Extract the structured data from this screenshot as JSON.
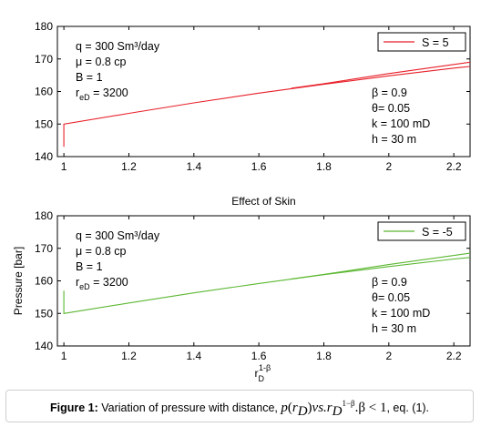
{
  "caption": {
    "label": "Figure 1:",
    "text": "Variation of pressure with distance,",
    "math_p": "p",
    "math_arg": "r",
    "math_arg_sub": "D",
    "math_vs": "vs.r",
    "math_vs_sub": "D",
    "math_exp": "1−β",
    "math_cond": ".β < 1",
    "suffix": ", eq. (1)."
  },
  "chart_data": [
    {
      "type": "line",
      "title": "",
      "xlabel": "",
      "ylabel": "",
      "xlim": [
        0.98,
        2.25
      ],
      "ylim": [
        140,
        180
      ],
      "xticks": [
        "1",
        "1.2",
        "1.4",
        "1.6",
        "1.8",
        "2",
        "2.2"
      ],
      "yticks": [
        "140",
        "150",
        "160",
        "170",
        "180"
      ],
      "grid": false,
      "legend": "top-right",
      "series": [
        {
          "name": "S = 5",
          "color": "#e8202a",
          "x": [
            1.0,
            1.0,
            1.2,
            1.4,
            1.6,
            1.8,
            2.0,
            2.2,
            2.25
          ],
          "y": [
            143.0,
            150.0,
            153.3,
            156.5,
            159.5,
            162.2,
            164.8,
            167.2,
            167.7
          ]
        },
        {
          "name": "",
          "color": "#e8202a",
          "x": [
            1.7,
            1.8,
            2.0,
            2.2,
            2.25
          ],
          "y": [
            161.0,
            162.4,
            165.5,
            168.3,
            169.0
          ]
        }
      ],
      "annotations": {
        "params_left": [
          "q = 300 Sm³/day",
          "μ = 0.8 cp",
          "B = 1",
          "r_eD = 3200"
        ],
        "params_right": [
          "β = 0.9",
          "θ= 0.05",
          "k = 100 mD",
          "h = 30 m"
        ]
      }
    },
    {
      "type": "line",
      "title": "Effect of Skin",
      "xlabel": "r_D^(1-β)",
      "ylabel": "Pressure  [bar]",
      "xlim": [
        0.98,
        2.25
      ],
      "ylim": [
        140,
        180
      ],
      "xticks": [
        "1",
        "1.2",
        "1.4",
        "1.6",
        "1.8",
        "2",
        "2.2"
      ],
      "yticks": [
        "140",
        "150",
        "160",
        "170",
        "180"
      ],
      "grid": false,
      "legend": "top-right",
      "series": [
        {
          "name": "S = -5",
          "color": "#5cb833",
          "x": [
            1.0,
            1.0,
            1.2,
            1.4,
            1.6,
            1.8,
            2.0,
            2.2,
            2.25
          ],
          "y": [
            157.0,
            150.0,
            153.2,
            156.3,
            159.2,
            161.9,
            164.4,
            166.7,
            167.2
          ]
        },
        {
          "name": "",
          "color": "#5cb833",
          "x": [
            1.7,
            1.8,
            2.0,
            2.2,
            2.25
          ],
          "y": [
            160.6,
            162.0,
            165.0,
            167.8,
            168.5
          ]
        }
      ],
      "annotations": {
        "params_left": [
          "q = 300 Sm³/day",
          "μ = 0.8 cp",
          "B = 1",
          "r_eD = 3200"
        ],
        "params_right": [
          "β = 0.9",
          "θ= 0.05",
          "k = 100 mD",
          "h = 30 m"
        ]
      }
    }
  ],
  "text": {
    "params_left": [
      "q = 300 Sm³/day",
      "μ = 0.8 cp",
      "B = 1"
    ],
    "reD_main": "r",
    "reD_sub": "eD",
    "reD_value": " = 3200",
    "params_right": [
      "β = 0.9",
      "θ= 0.05",
      "k = 100 mD",
      "h = 30 m"
    ],
    "title2": "Effect of Skin",
    "ylabel2": "Pressure  [bar]",
    "xlabel_main": "r",
    "xlabel_sub": "D",
    "xlabel_sup": "1-β"
  }
}
